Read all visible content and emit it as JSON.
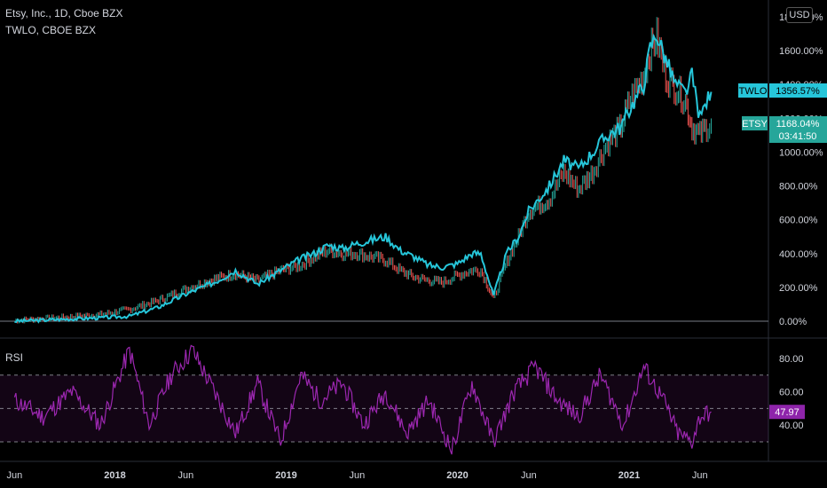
{
  "legend": {
    "main": "Etsy, Inc., 1D, Cboe BZX",
    "compare": "TWLO, CBOE BZX",
    "rsi": "RSI"
  },
  "currency": "USD",
  "colors": {
    "twlo": "#26c6da",
    "etsy_up": "#26a69a",
    "etsy_down": "#ef5350",
    "rsi": "#9c27b0",
    "rsi_badge": "#8e24aa",
    "etsy_badge": "#26a69a",
    "twlo_badge": "#26c6da"
  },
  "badges": {
    "twlo_name": "TWLO",
    "twlo_value": "1356.57%",
    "etsy_name": "ETSY",
    "etsy_value": "1168.04%",
    "etsy_countdown": "03:41:50",
    "rsi_value": "47.97"
  },
  "chart_data": [
    {
      "type": "line",
      "title": "",
      "ylabel": "",
      "y_unit": "%",
      "ylim": [
        -10,
        1800
      ],
      "y_ticks": [
        "1800.00%",
        "1600.00%",
        "1400.00%",
        "1200.00%",
        "1000.00%",
        "800.00%",
        "600.00%",
        "400.00%",
        "200.00%",
        "0.00%"
      ],
      "y_tick_values": [
        1800,
        1600,
        1400,
        1200,
        1000,
        800,
        600,
        400,
        200,
        0
      ],
      "x_ticks": [
        "Jun",
        "2018",
        "Jun",
        "2019",
        "Jun",
        "2020",
        "Jun",
        "2021",
        "Jun"
      ],
      "x_tick_dates": [
        "2017-06-01",
        "2018-01-01",
        "2018-06-01",
        "2019-01-01",
        "2019-06-01",
        "2020-01-01",
        "2020-06-01",
        "2021-01-01",
        "2021-06-01"
      ],
      "series": [
        {
          "name": "TWLO",
          "style": "line",
          "dates": [
            "2017-06-01",
            "2017-09-01",
            "2017-12-01",
            "2018-02-01",
            "2018-04-01",
            "2018-06-01",
            "2018-08-01",
            "2018-09-15",
            "2018-11-01",
            "2018-12-20",
            "2019-02-01",
            "2019-03-01",
            "2019-04-01",
            "2019-05-01",
            "2019-06-01",
            "2019-07-01",
            "2019-08-01",
            "2019-09-01",
            "2019-10-01",
            "2019-11-01",
            "2019-12-01",
            "2020-01-01",
            "2020-02-01",
            "2020-02-20",
            "2020-03-18",
            "2020-04-15",
            "2020-05-10",
            "2020-06-01",
            "2020-07-15",
            "2020-08-15",
            "2020-09-15",
            "2020-10-15",
            "2020-11-15",
            "2020-12-15",
            "2021-01-01",
            "2021-02-01",
            "2021-02-15",
            "2021-03-01",
            "2021-03-20",
            "2021-04-10",
            "2021-05-01",
            "2021-05-15",
            "2021-06-01",
            "2021-06-15",
            "2021-06-25"
          ],
          "values": [
            0,
            10,
            20,
            30,
            80,
            160,
            230,
            300,
            220,
            300,
            370,
            400,
            450,
            430,
            460,
            480,
            500,
            420,
            380,
            330,
            320,
            340,
            400,
            400,
            150,
            400,
            500,
            650,
            800,
            950,
            900,
            1000,
            1100,
            1150,
            1250,
            1400,
            1620,
            1700,
            1550,
            1400,
            1350,
            1450,
            1200,
            1300,
            1356.57
          ]
        },
        {
          "name": "ETSY",
          "style": "candles",
          "dates": [
            "2017-06-01",
            "2017-09-01",
            "2017-12-01",
            "2018-02-01",
            "2018-04-01",
            "2018-06-01",
            "2018-08-01",
            "2018-09-15",
            "2018-11-01",
            "2018-12-20",
            "2019-02-01",
            "2019-03-01",
            "2019-04-01",
            "2019-05-01",
            "2019-06-01",
            "2019-07-01",
            "2019-08-01",
            "2019-09-01",
            "2019-10-01",
            "2019-11-01",
            "2019-12-01",
            "2020-01-01",
            "2020-02-01",
            "2020-02-20",
            "2020-03-18",
            "2020-04-15",
            "2020-05-10",
            "2020-06-01",
            "2020-07-15",
            "2020-08-15",
            "2020-09-15",
            "2020-10-15",
            "2020-11-15",
            "2020-12-15",
            "2021-01-01",
            "2021-02-01",
            "2021-02-15",
            "2021-03-01",
            "2021-03-20",
            "2021-04-10",
            "2021-05-01",
            "2021-05-15",
            "2021-06-01",
            "2021-06-15",
            "2021-06-25"
          ],
          "values": [
            5,
            20,
            40,
            70,
            120,
            190,
            250,
            280,
            240,
            300,
            330,
            380,
            420,
            400,
            400,
            380,
            360,
            300,
            260,
            240,
            230,
            270,
            300,
            300,
            130,
            350,
            500,
            650,
            720,
            880,
            780,
            880,
            1050,
            1150,
            1300,
            1450,
            1600,
            1680,
            1450,
            1380,
            1300,
            1150,
            1100,
            1150,
            1168.04
          ]
        }
      ]
    },
    {
      "type": "line",
      "title": "RSI",
      "ylim": [
        20,
        90
      ],
      "y_ticks": [
        "80.00",
        "60.00",
        "40.00"
      ],
      "y_tick_values": [
        80,
        60,
        40
      ],
      "bands": [
        30,
        50,
        70
      ],
      "series": [
        {
          "name": "RSI",
          "dates": [
            "2017-06-01",
            "2017-08-01",
            "2017-10-01",
            "2017-12-01",
            "2018-02-01",
            "2018-03-15",
            "2018-05-01",
            "2018-06-15",
            "2018-08-01",
            "2018-09-15",
            "2018-11-01",
            "2018-12-20",
            "2019-02-01",
            "2019-03-15",
            "2019-05-01",
            "2019-06-15",
            "2019-08-01",
            "2019-09-15",
            "2019-11-01",
            "2019-12-20",
            "2020-02-01",
            "2020-03-18",
            "2020-05-01",
            "2020-06-15",
            "2020-08-01",
            "2020-09-15",
            "2020-11-01",
            "2020-12-20",
            "2021-02-01",
            "2021-03-15",
            "2021-04-15",
            "2021-05-15",
            "2021-06-01",
            "2021-06-25"
          ],
          "values": [
            55,
            45,
            60,
            40,
            85,
            40,
            70,
            85,
            60,
            35,
            65,
            30,
            70,
            55,
            65,
            40,
            60,
            35,
            55,
            25,
            65,
            30,
            60,
            75,
            55,
            45,
            70,
            40,
            75,
            55,
            35,
            30,
            45,
            47.97
          ]
        }
      ]
    }
  ]
}
